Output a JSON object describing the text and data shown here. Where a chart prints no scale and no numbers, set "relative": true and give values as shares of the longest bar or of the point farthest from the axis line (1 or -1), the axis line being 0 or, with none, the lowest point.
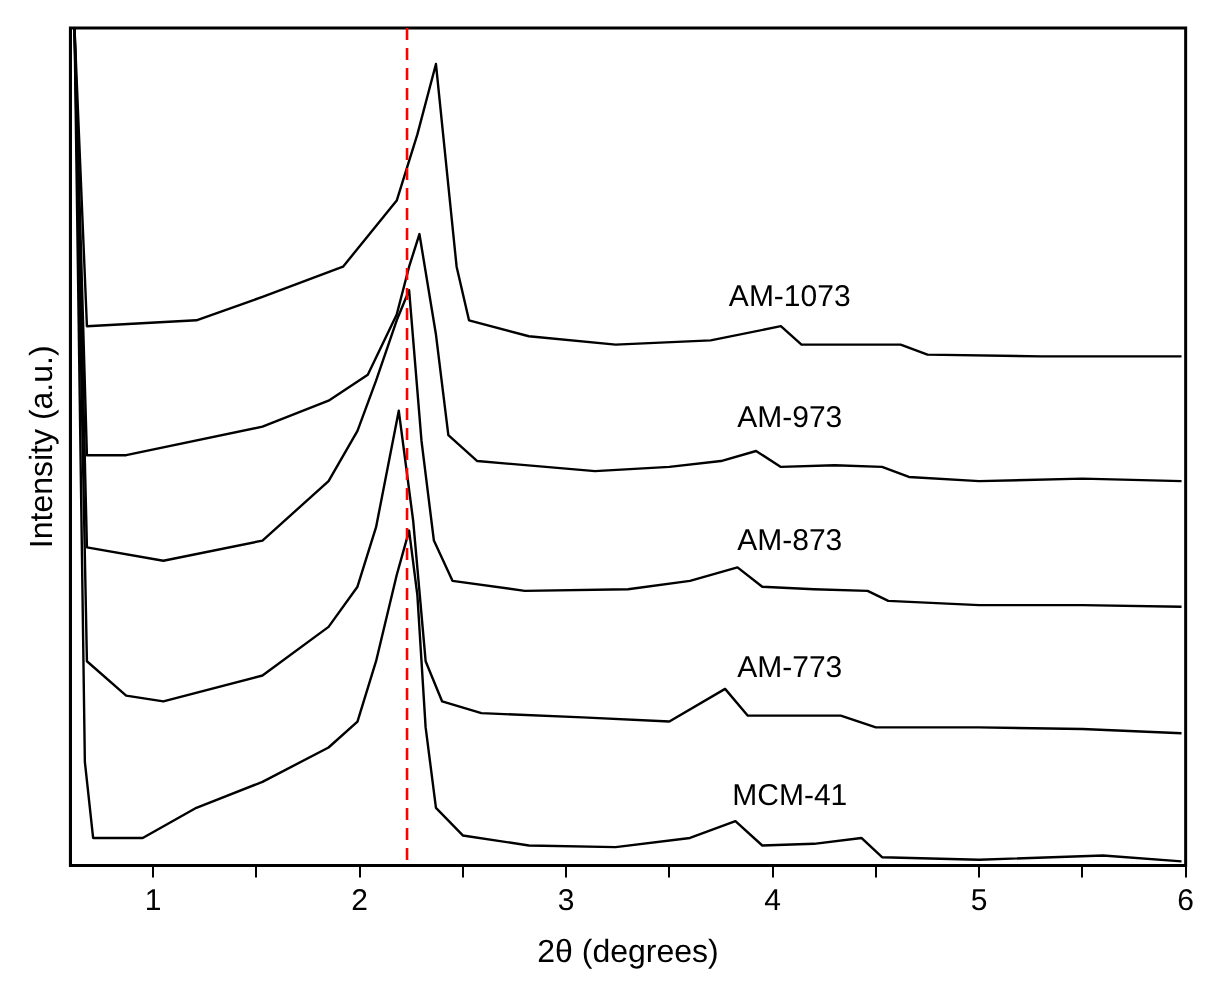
{
  "chart_data": {
    "type": "line",
    "xlabel": "2θ (degrees)",
    "ylabel": "Intensity (a.u.)",
    "relative": true,
    "xlim": [
      0.6,
      6
    ],
    "xticks": [
      1,
      {
        "value": 1.5,
        "label": null
      },
      2,
      {
        "value": 2.5,
        "label": null
      },
      3,
      {
        "value": 3.5,
        "label": null
      },
      4,
      {
        "value": 4.5,
        "label": null
      },
      5,
      {
        "value": 5.5,
        "label": null
      },
      6
    ],
    "tick_labels": "x",
    "grid": false,
    "legend": false,
    "marker": "none",
    "line_style": "solid",
    "ref_lines": [
      {
        "axis": "x",
        "value": 2.23,
        "color": "#ff0000",
        "line_style": "dashed"
      }
    ],
    "series": [
      {
        "name": "AM-1073",
        "color": "#000000",
        "x": [
          0.62,
          0.68,
          1.21,
          1.53,
          1.92,
          2.18,
          2.28,
          2.37,
          2.47,
          2.53,
          2.82,
          3.24,
          3.7,
          4.04,
          4.14,
          4.62,
          4.75,
          5.3,
          5.98
        ],
        "values": [
          1.0,
          0.644,
          0.651,
          0.679,
          0.715,
          0.794,
          0.873,
          0.957,
          0.715,
          0.651,
          0.632,
          0.622,
          0.627,
          0.644,
          0.622,
          0.622,
          0.61,
          0.608,
          0.608
        ]
      },
      {
        "name": "AM-973",
        "color": "#000000",
        "x": [
          0.62,
          0.68,
          0.87,
          1.53,
          1.85,
          2.04,
          2.18,
          2.24,
          2.29,
          2.37,
          2.43,
          2.57,
          3.14,
          3.5,
          3.75,
          3.92,
          4.04,
          4.3,
          4.53,
          4.66,
          5.0,
          5.5,
          5.98
        ],
        "values": [
          1.0,
          0.49,
          0.49,
          0.524,
          0.555,
          0.586,
          0.658,
          0.715,
          0.754,
          0.634,
          0.514,
          0.483,
          0.471,
          0.476,
          0.483,
          0.495,
          0.476,
          0.478,
          0.476,
          0.464,
          0.459,
          0.462,
          0.459
        ]
      },
      {
        "name": "AM-873",
        "color": "#000000",
        "x": [
          0.62,
          0.68,
          1.05,
          1.53,
          1.85,
          1.99,
          2.08,
          2.18,
          2.24,
          2.3,
          2.36,
          2.45,
          2.8,
          3.3,
          3.6,
          3.83,
          3.95,
          4.2,
          4.46,
          4.56,
          5.0,
          5.5,
          5.98
        ],
        "values": [
          1.0,
          0.38,
          0.364,
          0.388,
          0.459,
          0.519,
          0.579,
          0.651,
          0.687,
          0.507,
          0.388,
          0.34,
          0.328,
          0.33,
          0.34,
          0.356,
          0.333,
          0.33,
          0.328,
          0.316,
          0.311,
          0.311,
          0.309
        ]
      },
      {
        "name": "AM-773",
        "color": "#000000",
        "x": [
          0.62,
          0.68,
          0.87,
          1.05,
          1.53,
          1.85,
          1.99,
          2.08,
          2.19,
          2.26,
          2.32,
          2.4,
          2.59,
          3.08,
          3.5,
          3.77,
          3.88,
          4.33,
          4.5,
          5.0,
          5.5,
          5.98
        ],
        "values": [
          1.0,
          0.244,
          0.203,
          0.196,
          0.227,
          0.285,
          0.333,
          0.404,
          0.543,
          0.411,
          0.244,
          0.196,
          0.182,
          0.177,
          0.172,
          0.211,
          0.179,
          0.179,
          0.165,
          0.165,
          0.163,
          0.158
        ]
      },
      {
        "name": "MCM-41",
        "color": "#000000",
        "x": [
          0.62,
          0.67,
          0.71,
          0.95,
          1.21,
          1.53,
          1.85,
          1.99,
          2.08,
          2.18,
          2.24,
          2.28,
          2.32,
          2.37,
          2.5,
          2.82,
          3.24,
          3.6,
          3.82,
          3.95,
          4.2,
          4.43,
          4.53,
          5.0,
          5.6,
          5.98
        ],
        "values": [
          1.0,
          0.124,
          0.033,
          0.033,
          0.069,
          0.1,
          0.141,
          0.172,
          0.244,
          0.347,
          0.4,
          0.323,
          0.165,
          0.069,
          0.036,
          0.024,
          0.022,
          0.033,
          0.053,
          0.024,
          0.026,
          0.033,
          0.01,
          0.007,
          0.012,
          0.005
        ]
      }
    ]
  }
}
